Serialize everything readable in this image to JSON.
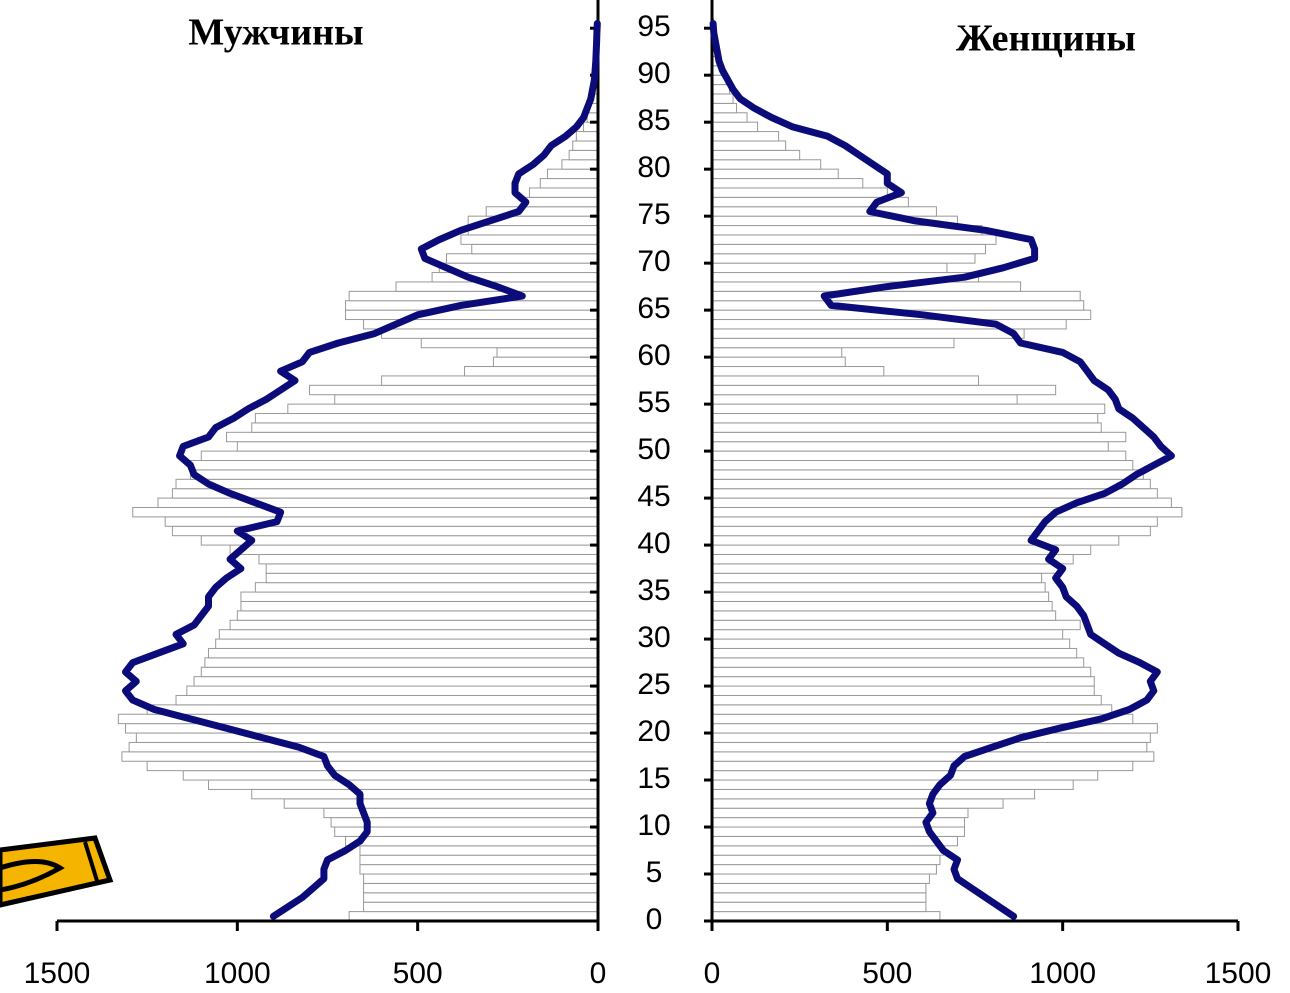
{
  "chart_data": {
    "type": "population-pyramid",
    "ages": [
      0,
      1,
      2,
      3,
      4,
      5,
      6,
      7,
      8,
      9,
      10,
      11,
      12,
      13,
      14,
      15,
      16,
      17,
      18,
      19,
      20,
      21,
      22,
      23,
      24,
      25,
      26,
      27,
      28,
      29,
      30,
      31,
      32,
      33,
      34,
      35,
      36,
      37,
      38,
      39,
      40,
      41,
      42,
      43,
      44,
      45,
      46,
      47,
      48,
      49,
      50,
      51,
      52,
      53,
      54,
      55,
      56,
      57,
      58,
      59,
      60,
      61,
      62,
      63,
      64,
      65,
      66,
      67,
      68,
      69,
      70,
      71,
      72,
      73,
      74,
      75,
      76,
      77,
      78,
      79,
      80,
      81,
      82,
      83,
      84,
      85,
      86,
      87,
      88,
      89,
      90,
      91,
      92,
      93,
      94,
      95
    ],
    "ylim": [
      0,
      98
    ],
    "yticks": [
      0,
      5,
      10,
      15,
      20,
      25,
      30,
      35,
      40,
      45,
      50,
      55,
      60,
      65,
      70,
      75,
      80,
      85,
      90,
      95
    ],
    "bar_color": "#ffffff",
    "bar_edge_color": "#999999",
    "line_color": "#0b0b7a",
    "left": {
      "label": "Мужчины",
      "xlim": [
        0,
        1500
      ],
      "xticks": [
        1500,
        1000,
        500,
        0
      ],
      "bars": [
        690,
        650,
        650,
        650,
        650,
        660,
        660,
        660,
        700,
        730,
        740,
        760,
        870,
        960,
        1080,
        1150,
        1250,
        1320,
        1300,
        1280,
        1310,
        1330,
        1250,
        1170,
        1140,
        1120,
        1100,
        1090,
        1080,
        1060,
        1050,
        1020,
        1000,
        990,
        990,
        950,
        920,
        920,
        940,
        1020,
        1100,
        1180,
        1200,
        1290,
        1220,
        1180,
        1170,
        1130,
        1130,
        1100,
        1000,
        1030,
        960,
        950,
        860,
        730,
        800,
        600,
        370,
        290,
        280,
        490,
        600,
        650,
        700,
        700,
        690,
        560,
        460,
        440,
        420,
        350,
        380,
        360,
        360,
        310,
        210,
        190,
        160,
        140,
        100,
        80,
        70,
        60,
        40,
        30,
        25,
        20,
        15,
        12,
        10,
        8,
        6,
        5,
        4,
        3
      ],
      "line": [
        900,
        860,
        820,
        790,
        760,
        760,
        750,
        700,
        660,
        640,
        640,
        650,
        660,
        660,
        690,
        730,
        750,
        760,
        830,
        930,
        1030,
        1130,
        1230,
        1290,
        1310,
        1280,
        1310,
        1290,
        1220,
        1150,
        1170,
        1120,
        1100,
        1080,
        1080,
        1060,
        1030,
        990,
        1020,
        990,
        960,
        1000,
        890,
        880,
        950,
        1020,
        1080,
        1120,
        1130,
        1160,
        1150,
        1080,
        1060,
        1010,
        970,
        920,
        880,
        840,
        880,
        820,
        800,
        720,
        620,
        560,
        500,
        380,
        210,
        280,
        360,
        420,
        480,
        490,
        440,
        380,
        300,
        220,
        200,
        230,
        230,
        220,
        180,
        150,
        130,
        90,
        60,
        40,
        30,
        20,
        15,
        10,
        8,
        6,
        5,
        4,
        3,
        2
      ]
    },
    "right": {
      "label": "Женщины",
      "xlim": [
        0,
        1500
      ],
      "xticks": [
        0,
        500,
        1000,
        1500
      ],
      "bars": [
        650,
        610,
        610,
        610,
        620,
        640,
        650,
        660,
        700,
        720,
        720,
        730,
        830,
        920,
        1030,
        1100,
        1200,
        1260,
        1240,
        1250,
        1270,
        1200,
        1140,
        1110,
        1090,
        1090,
        1080,
        1060,
        1040,
        1020,
        1000,
        1050,
        980,
        970,
        960,
        950,
        940,
        990,
        1030,
        1080,
        1160,
        1250,
        1270,
        1340,
        1310,
        1270,
        1250,
        1230,
        1200,
        1180,
        1130,
        1180,
        1110,
        1100,
        1120,
        870,
        980,
        760,
        490,
        380,
        370,
        690,
        890,
        1010,
        1080,
        1060,
        1050,
        880,
        760,
        670,
        750,
        780,
        810,
        770,
        700,
        640,
        560,
        500,
        430,
        360,
        310,
        250,
        210,
        190,
        130,
        100,
        70,
        60,
        50,
        40,
        30,
        20,
        15,
        10,
        6,
        4
      ],
      "line": [
        860,
        820,
        780,
        740,
        700,
        690,
        700,
        660,
        640,
        620,
        610,
        630,
        620,
        630,
        650,
        680,
        690,
        720,
        800,
        880,
        990,
        1110,
        1190,
        1240,
        1260,
        1250,
        1270,
        1220,
        1160,
        1120,
        1080,
        1070,
        1060,
        1040,
        1010,
        1000,
        980,
        1000,
        960,
        980,
        910,
        930,
        950,
        980,
        1040,
        1120,
        1170,
        1210,
        1260,
        1310,
        1280,
        1260,
        1230,
        1200,
        1160,
        1150,
        1130,
        1090,
        1070,
        1050,
        1000,
        880,
        860,
        810,
        600,
        340,
        320,
        500,
        720,
        830,
        920,
        920,
        910,
        780,
        580,
        450,
        470,
        540,
        500,
        500,
        460,
        420,
        380,
        330,
        230,
        170,
        120,
        80,
        60,
        45,
        30,
        20,
        15,
        10,
        5,
        3
      ]
    }
  }
}
